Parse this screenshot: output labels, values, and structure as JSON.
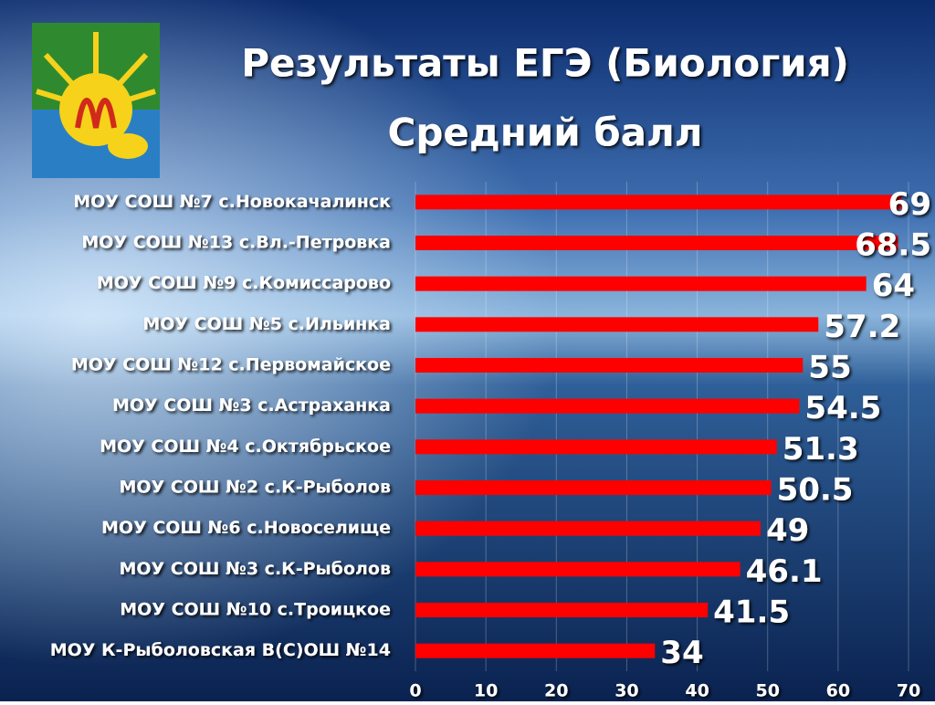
{
  "chart_data": {
    "type": "hbar",
    "title": "Результаты ЕГЭ (Биология)",
    "subtitle": "Средний балл",
    "categories": [
      "МОУ СОШ №7 с.Новокачалинск",
      "МОУ СОШ №13 с.Вл.-Петровка",
      "МОУ СОШ №9 с.Комиссарово",
      "МОУ СОШ №5 с.Ильинка",
      "МОУ СОШ №12 с.Первомайское",
      "МОУ СОШ №3 с.Астраханка",
      "МОУ СОШ №4 с.Октябрьское",
      "МОУ СОШ №2 с.К-Рыболов",
      "МОУ СОШ №6 с.Новоселище",
      "МОУ СОШ №3 с.К-Рыболов",
      "МОУ СОШ №10 с.Троицкое",
      "МОУ К-Рыболовская В(С)ОШ №14"
    ],
    "values": [
      69,
      68.5,
      64,
      57.2,
      55,
      54.5,
      51.3,
      50.5,
      49,
      46.1,
      41.5,
      34
    ],
    "color": "#ff0000",
    "xlim": [
      0,
      70
    ],
    "xticks": [
      0,
      10,
      20,
      30,
      40,
      50,
      60,
      70
    ],
    "grid": true
  }
}
